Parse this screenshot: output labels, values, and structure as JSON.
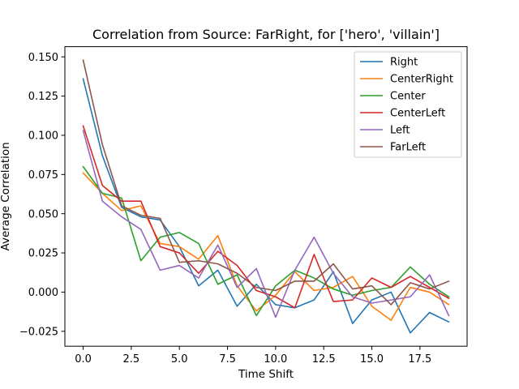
{
  "chart_data": {
    "type": "line",
    "title": "Correlation from Source: FarRight, for ['hero', 'villain']",
    "xlabel": "Time Shift",
    "ylabel": "Average Correlation",
    "xlim": [
      -0.95,
      19.95
    ],
    "ylim": [
      -0.0345,
      0.1565
    ],
    "xticks": [
      0.0,
      2.5,
      5.0,
      7.5,
      10.0,
      12.5,
      15.0,
      17.5
    ],
    "xtick_labels": [
      "0.0",
      "2.5",
      "5.0",
      "7.5",
      "10.0",
      "12.5",
      "15.0",
      "17.5"
    ],
    "yticks": [
      -0.025,
      0.0,
      0.025,
      0.05,
      0.075,
      0.1,
      0.125,
      0.15
    ],
    "ytick_labels": [
      "−0.025",
      "0.000",
      "0.025",
      "0.050",
      "0.075",
      "0.100",
      "0.125",
      "0.150"
    ],
    "grid": false,
    "legend_position": "top-right",
    "x": [
      0,
      1,
      2,
      3,
      4,
      5,
      6,
      7,
      8,
      9,
      10,
      11,
      12,
      13,
      14,
      15,
      16,
      17,
      18,
      19
    ],
    "series": [
      {
        "name": "Right",
        "color": "#1f77b4",
        "values": [
          0.136,
          0.087,
          0.054,
          0.048,
          0.046,
          0.029,
          0.004,
          0.014,
          -0.009,
          0.005,
          -0.008,
          -0.01,
          -0.005,
          0.013,
          -0.02,
          -0.005,
          0.0,
          -0.026,
          -0.013,
          -0.019
        ]
      },
      {
        "name": "CenterRight",
        "color": "#ff7f0e",
        "values": [
          0.076,
          0.063,
          0.052,
          0.055,
          0.031,
          0.029,
          0.021,
          0.036,
          0.004,
          -0.012,
          -0.002,
          0.013,
          0.001,
          0.003,
          0.01,
          -0.009,
          -0.018,
          0.003,
          0.0,
          -0.008
        ]
      },
      {
        "name": "Center",
        "color": "#2ca02c",
        "values": [
          0.08,
          0.063,
          0.06,
          0.02,
          0.035,
          0.038,
          0.031,
          0.005,
          0.011,
          -0.015,
          0.004,
          0.014,
          0.009,
          0.002,
          -0.002,
          0.001,
          0.003,
          0.016,
          0.005,
          -0.003
        ]
      },
      {
        "name": "CenterLeft",
        "color": "#d62728",
        "values": [
          0.106,
          0.068,
          0.058,
          0.058,
          0.029,
          0.025,
          0.012,
          0.026,
          0.017,
          0.001,
          -0.003,
          -0.01,
          0.024,
          -0.006,
          -0.005,
          0.009,
          0.003,
          0.01,
          0.003,
          -0.004
        ]
      },
      {
        "name": "Left",
        "color": "#9467bd",
        "values": [
          0.103,
          0.058,
          0.048,
          0.04,
          0.014,
          0.017,
          0.009,
          0.03,
          0.003,
          0.015,
          -0.016,
          0.014,
          0.035,
          0.012,
          -0.003,
          -0.007,
          -0.005,
          -0.003,
          0.011,
          -0.015
        ]
      },
      {
        "name": "FarLeft",
        "color": "#8c564b",
        "values": [
          0.148,
          0.094,
          0.055,
          0.049,
          0.047,
          0.019,
          0.02,
          0.018,
          0.012,
          0.003,
          0.001,
          0.007,
          0.007,
          0.018,
          0.002,
          0.004,
          -0.008,
          0.006,
          0.002,
          0.007
        ]
      }
    ]
  }
}
